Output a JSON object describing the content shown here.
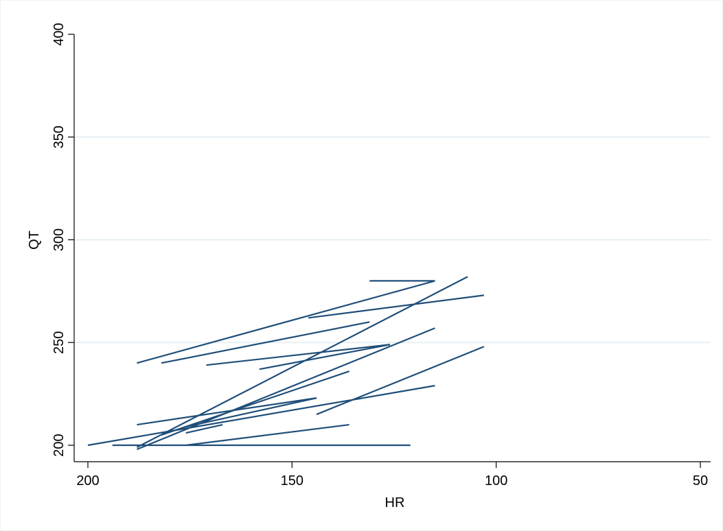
{
  "chart_data": {
    "type": "line",
    "title": "",
    "xlabel": "HR",
    "ylabel": "QT",
    "x_reversed": true,
    "xlim": [
      200,
      50
    ],
    "ylim": [
      200,
      400
    ],
    "xticks": [
      200,
      150,
      100,
      50
    ],
    "xtick_labels": [
      "200",
      "150",
      "100",
      "50"
    ],
    "yticks": [
      200,
      250,
      300,
      350,
      400
    ],
    "ytick_labels": [
      "200",
      "250",
      "300",
      "350",
      "400"
    ],
    "grid": "horizontal",
    "legend": "none",
    "series_color": "#1f4e79",
    "grid_color": "#e6eff3",
    "segments": [
      {
        "x": [
          200,
          115
        ],
        "y": [
          200,
          229
        ]
      },
      {
        "x": [
          194,
          121
        ],
        "y": [
          200,
          200
        ]
      },
      {
        "x": [
          188,
          115
        ],
        "y": [
          198,
          257
        ]
      },
      {
        "x": [
          188,
          107
        ],
        "y": [
          199,
          282
        ]
      },
      {
        "x": [
          188,
          144
        ],
        "y": [
          210,
          223
        ]
      },
      {
        "x": [
          188,
          115
        ],
        "y": [
          240,
          280
        ]
      },
      {
        "x": [
          182,
          136
        ],
        "y": [
          205,
          236
        ]
      },
      {
        "x": [
          182,
          131
        ],
        "y": [
          240,
          260
        ]
      },
      {
        "x": [
          176,
          136
        ],
        "y": [
          200,
          210
        ]
      },
      {
        "x": [
          176,
          144
        ],
        "y": [
          209,
          223
        ]
      },
      {
        "x": [
          176,
          167
        ],
        "y": [
          206,
          210
        ]
      },
      {
        "x": [
          171,
          126
        ],
        "y": [
          239,
          249
        ]
      },
      {
        "x": [
          158,
          126
        ],
        "y": [
          237,
          249
        ]
      },
      {
        "x": [
          146,
          103
        ],
        "y": [
          262,
          273
        ]
      },
      {
        "x": [
          144,
          103
        ],
        "y": [
          215,
          248
        ]
      },
      {
        "x": [
          131,
          115
        ],
        "y": [
          280,
          280
        ]
      }
    ]
  }
}
